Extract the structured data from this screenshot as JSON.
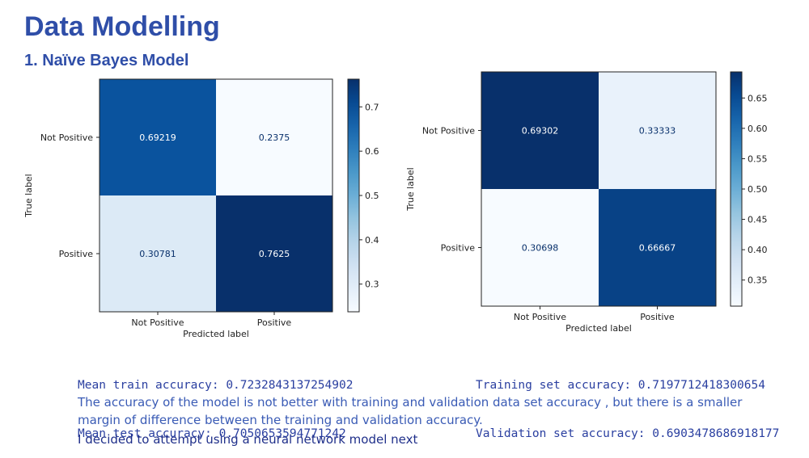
{
  "slide": {
    "title": "Data Modelling",
    "subtitle": "1. Naïve Bayes Model"
  },
  "colors": {
    "heading": "#2f4ea8",
    "metrics_text": "#2a3fa0",
    "paragraph_text": "#3a5bb5",
    "conclusion_text": "#1f2f8a",
    "colormap": "Blues"
  },
  "chart_data": [
    {
      "type": "heatmap",
      "title": "",
      "xlabel": "Predicted label",
      "ylabel": "True label",
      "x_categories": [
        "Not Positive",
        "Positive"
      ],
      "y_categories": [
        "Not Positive",
        "Positive"
      ],
      "values": [
        [
          0.69219,
          0.2375
        ],
        [
          0.30781,
          0.7625
        ]
      ],
      "cell_labels": [
        [
          "0.69219",
          "0.2375"
        ],
        [
          "0.30781",
          "0.7625"
        ]
      ],
      "colorbar": {
        "range": [
          0.2375,
          0.7625
        ],
        "ticks": [
          0.3,
          0.4,
          0.5,
          0.6,
          0.7
        ]
      }
    },
    {
      "type": "heatmap",
      "title": "",
      "xlabel": "Predicted label",
      "ylabel": "True label",
      "x_categories": [
        "Not Positive",
        "Positive"
      ],
      "y_categories": [
        "Not Positive",
        "Positive"
      ],
      "values": [
        [
          0.69302,
          0.33333
        ],
        [
          0.30698,
          0.66667
        ]
      ],
      "cell_labels": [
        [
          "0.69302",
          "0.33333"
        ],
        [
          "0.30698",
          "0.66667"
        ]
      ],
      "colorbar": {
        "range": [
          0.30698,
          0.69302
        ],
        "ticks": [
          0.35,
          0.4,
          0.45,
          0.5,
          0.55,
          0.6,
          0.65
        ]
      }
    }
  ],
  "metrics": {
    "left": {
      "line1": "Mean train accuracy: 0.7232843137254902",
      "line2": "Mean test accuracy: 0.7050653594771242"
    },
    "right": {
      "line1": "Training set accuracy: 0.7197712418300654",
      "line2": "Validation set accuracy: 0.6903478686918177"
    }
  },
  "notes": {
    "paragraph": "The accuracy of the model is not better with training and validation data set accuracy , but there is a smaller margin of difference between the training and validation accuracy.",
    "conclusion": "I decided to attempt using a neural network model next"
  }
}
